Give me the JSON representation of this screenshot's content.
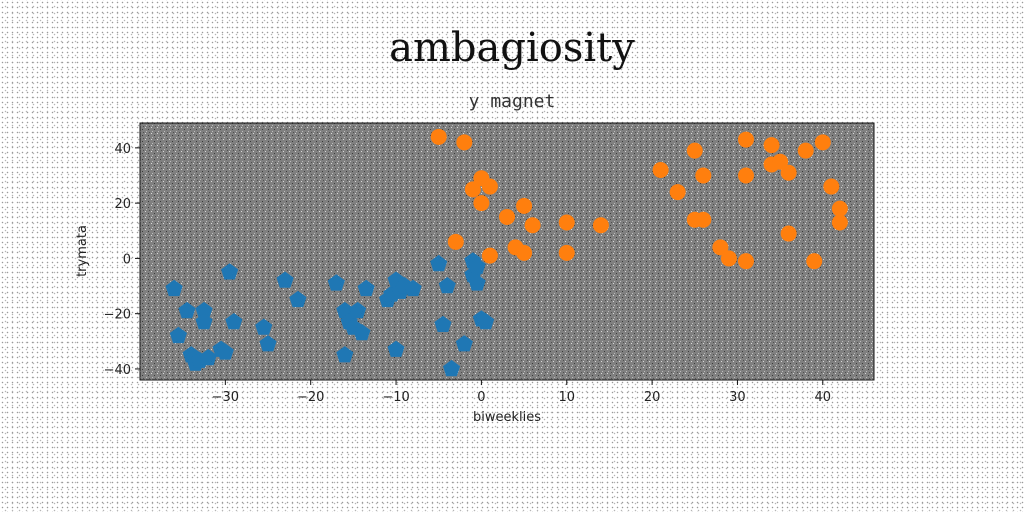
{
  "chart_data": {
    "type": "scatter",
    "title": "ambagiosity",
    "subtitle": "y magnet",
    "xlabel": "biweeklies",
    "ylabel": "trymata",
    "xlim": [
      -40,
      46
    ],
    "ylim": [
      -44,
      49
    ],
    "xticks": [
      -30,
      -20,
      -10,
      0,
      10,
      20,
      30,
      40
    ],
    "yticks": [
      -40,
      -20,
      0,
      20,
      40
    ],
    "xtick_labels": [
      "−30",
      "−20",
      "−10",
      "0",
      "10",
      "20",
      "30",
      "40"
    ],
    "ytick_labels": [
      "−40",
      "−20",
      "0",
      "20",
      "40"
    ],
    "grid": false,
    "plot_background": "#808080",
    "series": [
      {
        "color": "#1f77b4",
        "marker": "pentagon",
        "points": [
          [
            -36,
            -11
          ],
          [
            -35.5,
            -28
          ],
          [
            -34.5,
            -19
          ],
          [
            -34,
            -35
          ],
          [
            -33.5,
            -38
          ],
          [
            -33,
            -37
          ],
          [
            -32.5,
            -19
          ],
          [
            -32.5,
            -23
          ],
          [
            -32,
            -36
          ],
          [
            -30.5,
            -33
          ],
          [
            -30,
            -34
          ],
          [
            -29.5,
            -5
          ],
          [
            -29,
            -23
          ],
          [
            -25.5,
            -25
          ],
          [
            -25,
            -31
          ],
          [
            -23,
            -8
          ],
          [
            -21.5,
            -15
          ],
          [
            -17,
            -9
          ],
          [
            -16,
            -19
          ],
          [
            -16,
            -35
          ],
          [
            -15.5,
            -23
          ],
          [
            -15,
            -25
          ],
          [
            -14.5,
            -19
          ],
          [
            -14,
            -27
          ],
          [
            -13.5,
            -11
          ],
          [
            -11,
            -15
          ],
          [
            -10.5,
            -13
          ],
          [
            -10,
            -8
          ],
          [
            -10,
            -33
          ],
          [
            -9.5,
            -12
          ],
          [
            -9,
            -10
          ],
          [
            -8,
            -11
          ],
          [
            -5,
            -2
          ],
          [
            -4.5,
            -24
          ],
          [
            -4,
            -10
          ],
          [
            -3.5,
            -40
          ],
          [
            -2,
            -31
          ],
          [
            -1,
            -6
          ],
          [
            -1,
            -1
          ],
          [
            -0.5,
            -3
          ],
          [
            -0.5,
            -9
          ],
          [
            0,
            -22
          ],
          [
            0.5,
            -23
          ]
        ]
      },
      {
        "color": "#ff7f0e",
        "marker": "circle",
        "points": [
          [
            -5,
            44
          ],
          [
            -2,
            42
          ],
          [
            -3,
            6
          ],
          [
            -1,
            25
          ],
          [
            0,
            29
          ],
          [
            0,
            20
          ],
          [
            1,
            26
          ],
          [
            1,
            1
          ],
          [
            3,
            15
          ],
          [
            4,
            4
          ],
          [
            5,
            19
          ],
          [
            5,
            2
          ],
          [
            6,
            12
          ],
          [
            10,
            13
          ],
          [
            10,
            2
          ],
          [
            14,
            12
          ],
          [
            21,
            32
          ],
          [
            23,
            24
          ],
          [
            25,
            39
          ],
          [
            25,
            14
          ],
          [
            26,
            14
          ],
          [
            26,
            30
          ],
          [
            28,
            4
          ],
          [
            29,
            0
          ],
          [
            31,
            43
          ],
          [
            31,
            30
          ],
          [
            31,
            -1
          ],
          [
            34,
            41
          ],
          [
            34,
            34
          ],
          [
            35,
            35
          ],
          [
            36,
            31
          ],
          [
            36,
            9
          ],
          [
            38,
            39
          ],
          [
            39,
            -1
          ],
          [
            40,
            42
          ],
          [
            41,
            26
          ],
          [
            42,
            18
          ],
          [
            42,
            13
          ]
        ]
      }
    ]
  }
}
